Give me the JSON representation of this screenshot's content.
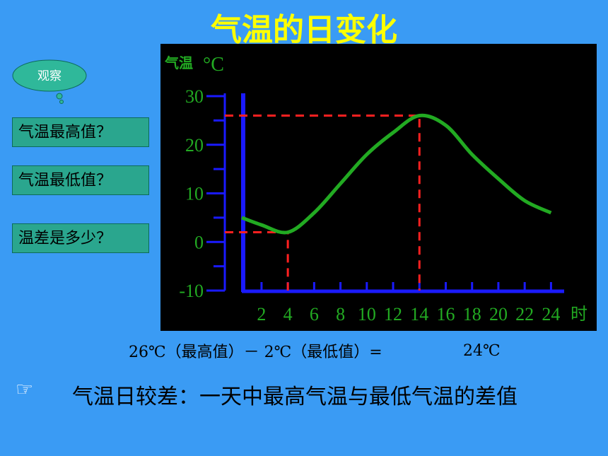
{
  "header": {
    "title": "气温的日变化"
  },
  "callout": "观察",
  "questions": [
    "气温最高值？",
    "气温最低值？",
    "温差是多少？"
  ],
  "chart_data": {
    "type": "line",
    "y_label": "气温",
    "y_unit": "°C",
    "x_unit": "时",
    "x": [
      0.5,
      2,
      4,
      6,
      8,
      10,
      12,
      14,
      16,
      18,
      20,
      22,
      24
    ],
    "series": [
      {
        "name": "气温",
        "color": "#22aa22",
        "values": [
          5,
          3.5,
          2,
          6,
          12,
          18,
          22.5,
          26,
          24,
          18,
          13,
          8.5,
          6
        ]
      }
    ],
    "xlim": [
      0.5,
      25
    ],
    "xticks": [
      2,
      4,
      6,
      8,
      10,
      12,
      14,
      16,
      18,
      20,
      22,
      24
    ],
    "ylim": [
      -10,
      30
    ],
    "yticks": [
      30,
      20,
      10,
      0,
      -10
    ],
    "max_index": 7,
    "min_index": 2,
    "guide_color": "#ff2020",
    "axis_color": "#1a1aff"
  },
  "formula": "26℃（最高值）－ 2℃（最低值）=",
  "result": "24℃",
  "bullet": "☞",
  "definition": "气温日较差：一天中最高气温与最低气温的差值"
}
